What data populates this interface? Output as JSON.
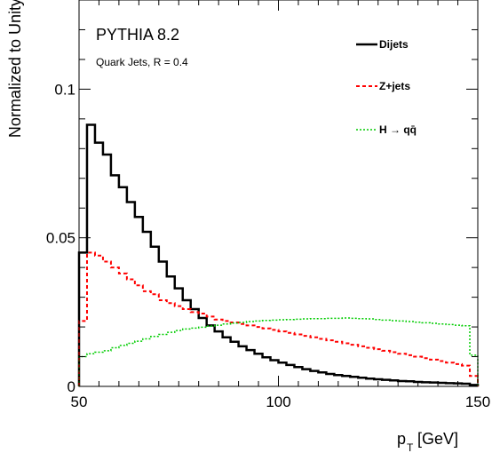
{
  "chart_data": {
    "type": "line",
    "style": "step-histogram",
    "title": "",
    "annotations": [
      "PYTHIA 8.2",
      "Quark Jets, R = 0.4"
    ],
    "xlabel": "p_T [GeV]",
    "ylabel": "Normalized to Unity",
    "xlim": [
      50,
      150
    ],
    "ylim": [
      0,
      0.13
    ],
    "grid": false,
    "legend_position": "top-right",
    "xticks": [
      {
        "value": 50,
        "label": "50"
      },
      {
        "value": 100,
        "label": "100"
      },
      {
        "value": 150,
        "label": "150"
      }
    ],
    "yticks": [
      {
        "value": 0,
        "label": "0"
      },
      {
        "value": 0.05,
        "label": "0.05"
      },
      {
        "value": 0.1,
        "label": "0.1"
      }
    ],
    "bin_edges": [
      50,
      52,
      54,
      56,
      58,
      60,
      62,
      64,
      66,
      68,
      70,
      72,
      74,
      76,
      78,
      80,
      82,
      84,
      86,
      88,
      90,
      92,
      94,
      96,
      98,
      100,
      102,
      104,
      106,
      108,
      110,
      112,
      114,
      116,
      118,
      120,
      122,
      124,
      126,
      128,
      130,
      132,
      134,
      136,
      138,
      140,
      142,
      144,
      146,
      148,
      150
    ],
    "series": [
      {
        "name": "Dijets",
        "color": "#000000",
        "dash": "solid",
        "values": [
          0.045,
          0.088,
          0.082,
          0.078,
          0.071,
          0.067,
          0.062,
          0.057,
          0.052,
          0.047,
          0.042,
          0.037,
          0.033,
          0.029,
          0.026,
          0.023,
          0.0205,
          0.0185,
          0.0165,
          0.015,
          0.0135,
          0.0122,
          0.011,
          0.0098,
          0.0088,
          0.008,
          0.0072,
          0.0065,
          0.0058,
          0.0052,
          0.0047,
          0.0042,
          0.0038,
          0.0035,
          0.0032,
          0.0029,
          0.0026,
          0.0024,
          0.0022,
          0.002,
          0.0018,
          0.0017,
          0.0015,
          0.0014,
          0.0013,
          0.0012,
          0.0011,
          0.001,
          0.0009,
          0.0005
        ]
      },
      {
        "name": "Z+jets",
        "color": "#ff0000",
        "dash": "dashed",
        "values": [
          0.022,
          0.045,
          0.044,
          0.042,
          0.04,
          0.038,
          0.036,
          0.034,
          0.032,
          0.031,
          0.029,
          0.028,
          0.027,
          0.026,
          0.025,
          0.0245,
          0.0235,
          0.0225,
          0.022,
          0.0215,
          0.021,
          0.0205,
          0.02,
          0.0195,
          0.019,
          0.0185,
          0.018,
          0.0175,
          0.017,
          0.0165,
          0.016,
          0.0155,
          0.015,
          0.0145,
          0.014,
          0.0135,
          0.013,
          0.0125,
          0.012,
          0.0115,
          0.011,
          0.0105,
          0.01,
          0.0095,
          0.009,
          0.0085,
          0.008,
          0.0075,
          0.007,
          0.0035
        ]
      },
      {
        "name": "H → qq̄",
        "color": "#00cc00",
        "dash": "dotted",
        "values": [
          0.01,
          0.011,
          0.0115,
          0.012,
          0.013,
          0.0138,
          0.0145,
          0.0152,
          0.016,
          0.0168,
          0.0175,
          0.0182,
          0.0188,
          0.0193,
          0.0196,
          0.0199,
          0.0203,
          0.0206,
          0.021,
          0.0213,
          0.0215,
          0.0218,
          0.022,
          0.0222,
          0.0223,
          0.0224,
          0.0225,
          0.0226,
          0.0227,
          0.0228,
          0.0228,
          0.0229,
          0.0229,
          0.023,
          0.0229,
          0.0228,
          0.0227,
          0.0225,
          0.0223,
          0.0221,
          0.022,
          0.0218,
          0.0216,
          0.0214,
          0.0212,
          0.021,
          0.0208,
          0.0206,
          0.0204,
          0.0105
        ]
      }
    ]
  }
}
